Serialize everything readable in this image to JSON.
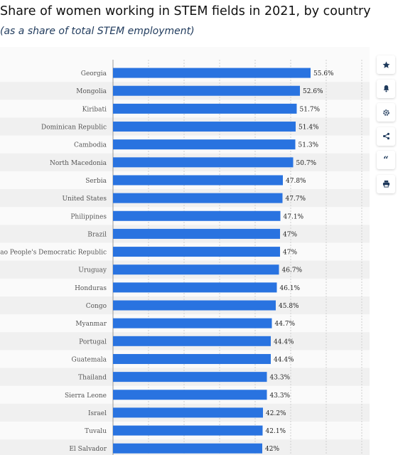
{
  "header": {
    "title": "Share of women working in STEM fields in 2021, by country",
    "subtitle": "(as a share of total STEM employment)"
  },
  "toolbar": {
    "buttons": [
      {
        "icon": "star-icon"
      },
      {
        "icon": "bell-icon"
      },
      {
        "icon": "gear-icon"
      },
      {
        "icon": "share-icon"
      },
      {
        "icon": "quote-icon"
      },
      {
        "icon": "print-icon"
      }
    ]
  },
  "colors": {
    "bar": "#2973e0",
    "label": "#555555",
    "value": "#222222",
    "stripe": "#f0f0f0",
    "grid": "#cfcfcf"
  },
  "chart_data": {
    "type": "bar",
    "orientation": "horizontal",
    "categories": [
      "Georgia",
      "Mongolia",
      "Kiribati",
      "Dominican Republic",
      "Cambodia",
      "North Macedonia",
      "Serbia",
      "United States",
      "Philippines",
      "Brazil",
      "Lao People's Democratic Republic",
      "Uruguay",
      "Honduras",
      "Congo",
      "Myanmar",
      "Portugal",
      "Guatemala",
      "Thailand",
      "Sierra Leone",
      "Israel",
      "Tuvalu",
      "El Salvador"
    ],
    "values": [
      55.6,
      52.6,
      51.7,
      51.4,
      51.3,
      50.7,
      47.8,
      47.7,
      47.1,
      47,
      47,
      46.7,
      46.1,
      45.8,
      44.7,
      44.4,
      44.4,
      43.3,
      43.3,
      42.2,
      42.1,
      42
    ],
    "value_labels": [
      "55.6%",
      "52.6%",
      "51.7%",
      "51.4%",
      "51.3%",
      "50.7%",
      "47.8%",
      "47.7%",
      "47.1%",
      "47%",
      "47%",
      "46.7%",
      "46.1%",
      "45.8%",
      "44.7%",
      "44.4%",
      "44.4%",
      "43.3%",
      "43.3%",
      "42.2%",
      "42.1%",
      "42%"
    ],
    "xlim": [
      0,
      70
    ],
    "grid": true
  }
}
